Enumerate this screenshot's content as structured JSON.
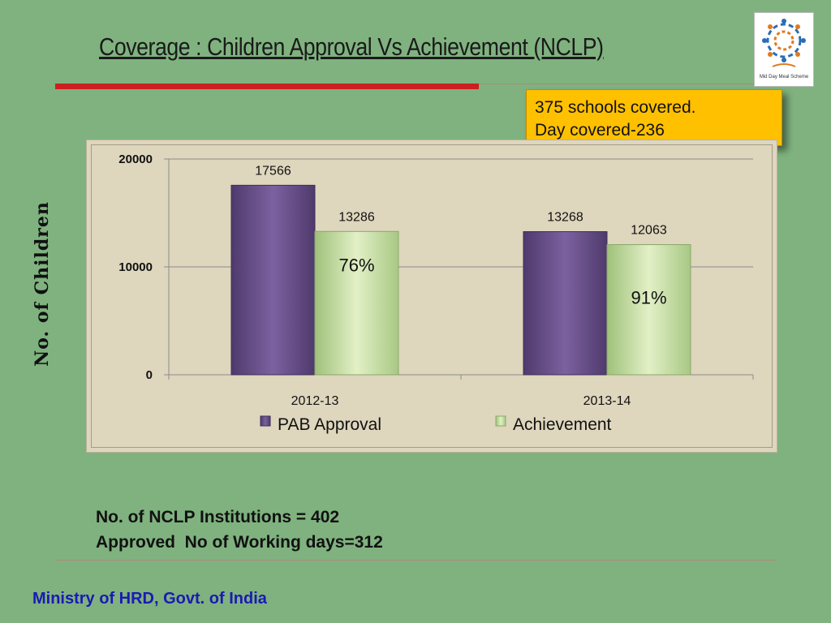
{
  "slide": {
    "title": "Coverage : Children Approval Vs Achievement (NCLP)",
    "callout_line1": "375 schools covered.",
    "callout_line2": "Day covered-236",
    "footer_line1": "No. of NCLP Institutions = 402",
    "footer_line2": "Approved  No of Working days=312",
    "ministry": "Ministry of HRD, Govt. of India",
    "logo_text": "Mid Day Meal Scheme"
  },
  "chart_data": {
    "type": "bar",
    "title": "",
    "xlabel": "",
    "ylabel": "No. of Children",
    "categories": [
      "2012-13",
      "2013-14"
    ],
    "series": [
      {
        "name": "PAB Approval",
        "values": [
          17566,
          13268
        ],
        "color": "#6a4e86"
      },
      {
        "name": "Achievement",
        "values": [
          13286,
          12063
        ],
        "color": "#c8dea0"
      }
    ],
    "percent_labels": [
      "76%",
      "91%"
    ],
    "yticks": [
      "0",
      "10000",
      "20000"
    ],
    "ylim": [
      0,
      20000
    ],
    "grid": true,
    "legend": "bottom"
  }
}
